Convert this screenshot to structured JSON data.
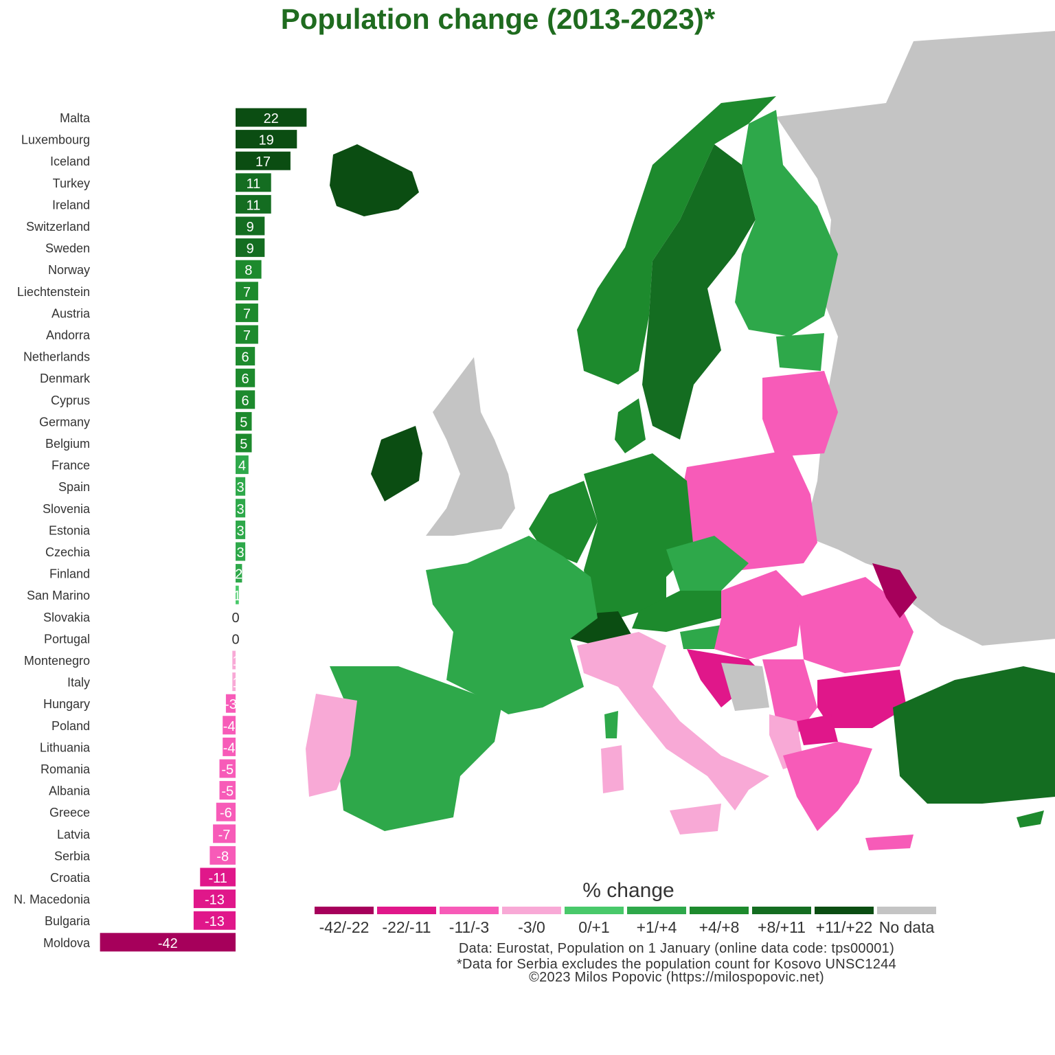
{
  "title": "Population change (2013-2023)*",
  "colors": {
    "bins": [
      "#a6005b",
      "#e0178a",
      "#f75bb8",
      "#f8a9d6",
      "#49c96a",
      "#2ea84a",
      "#1d8a2d",
      "#146d21",
      "#0b4d12",
      "#c4c4c4"
    ],
    "land_no_data": "#c4c4c4",
    "title": "#1f6b1f"
  },
  "legend": {
    "title": "% change",
    "labels": [
      "-42/-22",
      "-22/-11",
      "-11/-3",
      "-3/0",
      "0/+1",
      "+1/+4",
      "+4/+8",
      "+8/+11",
      "+11/+22",
      "No data"
    ]
  },
  "source": {
    "line1": "Data: Eurostat, Population on 1 January (online data code: tps00001)",
    "line2": "*Data for Serbia excludes the population count for Kosovo UNSC1244",
    "line3": "©2023 Milos Popovic (https://milospopovic.net)"
  },
  "chart_data": {
    "type": "bar",
    "orientation": "horizontal",
    "title": "Population change (2013-2023)*",
    "categories": [
      "Malta",
      "Luxembourg",
      "Iceland",
      "Turkey",
      "Ireland",
      "Switzerland",
      "Sweden",
      "Norway",
      "Liechtenstein",
      "Austria",
      "Andorra",
      "Netherlands",
      "Denmark",
      "Cyprus",
      "Germany",
      "Belgium",
      "France",
      "Spain",
      "Slovenia",
      "Estonia",
      "Czechia",
      "Finland",
      "San Marino",
      "Slovakia",
      "Portugal",
      "Montenegro",
      "Italy",
      "Hungary",
      "Poland",
      "Lithuania",
      "Romania",
      "Albania",
      "Greece",
      "Latvia",
      "Serbia",
      "Croatia",
      "N. Macedonia",
      "Bulgaria",
      "Moldova"
    ],
    "values": [
      22,
      19,
      17,
      11,
      11,
      9,
      9,
      8,
      7,
      7,
      7,
      6,
      6,
      6,
      5,
      5,
      4,
      3,
      3,
      3,
      3,
      2,
      1,
      0,
      0,
      -1,
      -1,
      -3,
      -4,
      -4,
      -5,
      -5,
      -6,
      -7,
      -8,
      -11,
      -13,
      -13,
      -42
    ],
    "legend": "bottom-right",
    "grid": false
  }
}
